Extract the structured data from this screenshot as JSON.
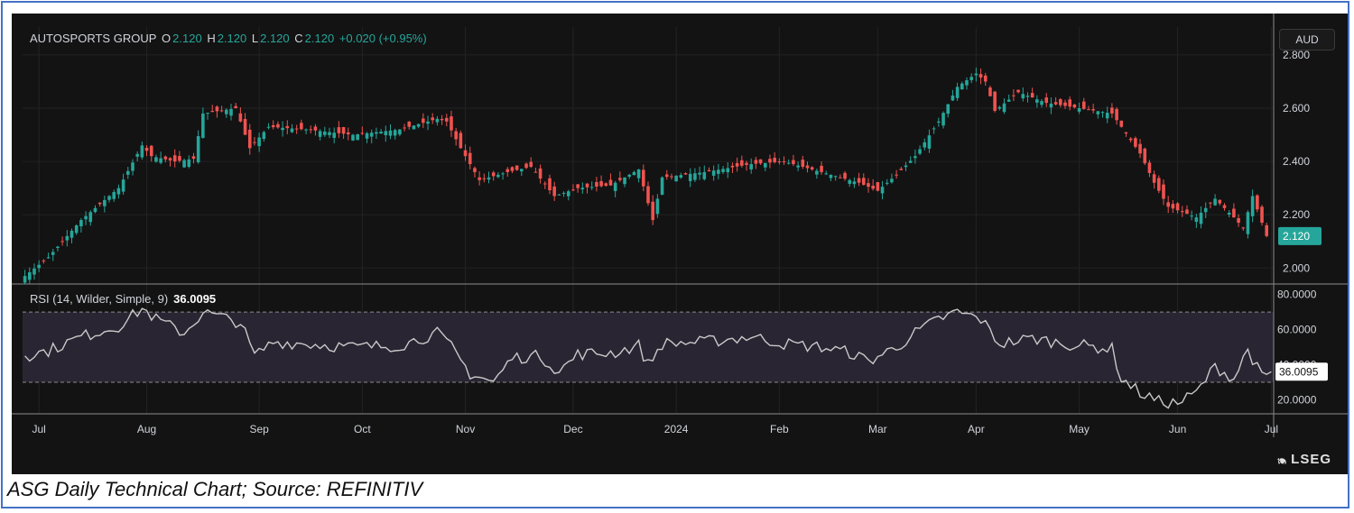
{
  "header": {
    "name": "AUTOSPORTS GROUP",
    "open_label": "O",
    "open": "2.120",
    "high_label": "H",
    "high": "2.120",
    "low_label": "L",
    "low": "2.120",
    "close_label": "C",
    "close": "2.120",
    "change": "+0.020 (+0.95%)"
  },
  "currency": "AUD",
  "rsi_header": {
    "label": "RSI (14, Wilder, Simple, 9)",
    "value": "36.0095"
  },
  "logo": {
    "text": "LSEG",
    "mark": "🙔"
  },
  "caption": "ASG Daily Technical Chart; Source: REFINITIV",
  "colors": {
    "up": "#26a69a",
    "down": "#ef5350",
    "rsi": "#c9c9c9",
    "rsi_band": "#2a2533",
    "background": "#131313",
    "grid": "#232323",
    "axis_text": "#d1d4dc"
  },
  "chart_data": {
    "type": "candlestick",
    "price_axis": {
      "ticks": [
        "2.000",
        "2.200",
        "2.400",
        "2.600",
        "2.800"
      ],
      "tick_values": [
        2.0,
        2.2,
        2.4,
        2.6,
        2.8
      ],
      "ylim": [
        1.94,
        2.82
      ],
      "last_price_label": "2.120",
      "last_price": 2.12
    },
    "rsi_axis": {
      "ticks": [
        "20.0000",
        "40.0000",
        "60.0000",
        "80.0000"
      ],
      "tick_values": [
        20,
        40,
        60,
        80
      ],
      "ylim": [
        12,
        85
      ],
      "bands": [
        30,
        70
      ],
      "last_value_label": "36.0095",
      "last_value": 36.0095
    },
    "x_axis": {
      "labels": [
        "Jul",
        "Aug",
        "Sep",
        "Oct",
        "Nov",
        "Dec",
        "2024",
        "Feb",
        "Mar",
        "Apr",
        "May",
        "Jun",
        "Jul"
      ],
      "label_index": [
        3,
        26,
        50,
        72,
        94,
        117,
        139,
        161,
        182,
        203,
        225,
        246,
        266
      ]
    },
    "close_anchors": [
      {
        "i": 0,
        "v": 1.97
      },
      {
        "i": 5,
        "v": 2.04
      },
      {
        "i": 12,
        "v": 2.18
      },
      {
        "i": 20,
        "v": 2.3
      },
      {
        "i": 25,
        "v": 2.46
      },
      {
        "i": 27,
        "v": 2.42
      },
      {
        "i": 32,
        "v": 2.4
      },
      {
        "i": 36,
        "v": 2.41
      },
      {
        "i": 38,
        "v": 2.58
      },
      {
        "i": 45,
        "v": 2.6
      },
      {
        "i": 48,
        "v": 2.45
      },
      {
        "i": 52,
        "v": 2.53
      },
      {
        "i": 60,
        "v": 2.52
      },
      {
        "i": 70,
        "v": 2.5
      },
      {
        "i": 80,
        "v": 2.52
      },
      {
        "i": 88,
        "v": 2.56
      },
      {
        "i": 90,
        "v": 2.55
      },
      {
        "i": 93,
        "v": 2.45
      },
      {
        "i": 97,
        "v": 2.33
      },
      {
        "i": 103,
        "v": 2.36
      },
      {
        "i": 108,
        "v": 2.38
      },
      {
        "i": 113,
        "v": 2.27
      },
      {
        "i": 118,
        "v": 2.3
      },
      {
        "i": 125,
        "v": 2.31
      },
      {
        "i": 131,
        "v": 2.37
      },
      {
        "i": 134,
        "v": 2.18
      },
      {
        "i": 136,
        "v": 2.34
      },
      {
        "i": 145,
        "v": 2.36
      },
      {
        "i": 155,
        "v": 2.39
      },
      {
        "i": 162,
        "v": 2.4
      },
      {
        "i": 170,
        "v": 2.36
      },
      {
        "i": 178,
        "v": 2.32
      },
      {
        "i": 182,
        "v": 2.29
      },
      {
        "i": 186,
        "v": 2.35
      },
      {
        "i": 190,
        "v": 2.42
      },
      {
        "i": 195,
        "v": 2.55
      },
      {
        "i": 199,
        "v": 2.68
      },
      {
        "i": 203,
        "v": 2.73
      },
      {
        "i": 205,
        "v": 2.7
      },
      {
        "i": 207,
        "v": 2.59
      },
      {
        "i": 212,
        "v": 2.66
      },
      {
        "i": 218,
        "v": 2.62
      },
      {
        "i": 225,
        "v": 2.6
      },
      {
        "i": 232,
        "v": 2.58
      },
      {
        "i": 238,
        "v": 2.43
      },
      {
        "i": 241,
        "v": 2.32
      },
      {
        "i": 244,
        "v": 2.23
      },
      {
        "i": 250,
        "v": 2.19
      },
      {
        "i": 254,
        "v": 2.26
      },
      {
        "i": 258,
        "v": 2.19
      },
      {
        "i": 260,
        "v": 2.15
      },
      {
        "i": 262,
        "v": 2.27
      },
      {
        "i": 264,
        "v": 2.17
      },
      {
        "i": 265,
        "v": 2.12
      }
    ],
    "rsi_anchors": [
      {
        "i": 0,
        "v": 45
      },
      {
        "i": 5,
        "v": 48
      },
      {
        "i": 12,
        "v": 56
      },
      {
        "i": 20,
        "v": 62
      },
      {
        "i": 25,
        "v": 72
      },
      {
        "i": 28,
        "v": 66
      },
      {
        "i": 34,
        "v": 58
      },
      {
        "i": 38,
        "v": 70
      },
      {
        "i": 46,
        "v": 64
      },
      {
        "i": 49,
        "v": 45
      },
      {
        "i": 53,
        "v": 53
      },
      {
        "i": 60,
        "v": 52
      },
      {
        "i": 70,
        "v": 50
      },
      {
        "i": 80,
        "v": 51
      },
      {
        "i": 88,
        "v": 58
      },
      {
        "i": 91,
        "v": 50
      },
      {
        "i": 95,
        "v": 35
      },
      {
        "i": 100,
        "v": 30
      },
      {
        "i": 104,
        "v": 44
      },
      {
        "i": 110,
        "v": 45
      },
      {
        "i": 114,
        "v": 36
      },
      {
        "i": 118,
        "v": 46
      },
      {
        "i": 126,
        "v": 47
      },
      {
        "i": 131,
        "v": 51
      },
      {
        "i": 133,
        "v": 40
      },
      {
        "i": 136,
        "v": 52
      },
      {
        "i": 145,
        "v": 53
      },
      {
        "i": 155,
        "v": 56
      },
      {
        "i": 162,
        "v": 52
      },
      {
        "i": 170,
        "v": 50
      },
      {
        "i": 176,
        "v": 47
      },
      {
        "i": 180,
        "v": 42
      },
      {
        "i": 186,
        "v": 50
      },
      {
        "i": 190,
        "v": 58
      },
      {
        "i": 195,
        "v": 66
      },
      {
        "i": 199,
        "v": 70
      },
      {
        "i": 204,
        "v": 66
      },
      {
        "i": 208,
        "v": 52
      },
      {
        "i": 215,
        "v": 55
      },
      {
        "i": 222,
        "v": 52
      },
      {
        "i": 232,
        "v": 49
      },
      {
        "i": 234,
        "v": 32
      },
      {
        "i": 238,
        "v": 24
      },
      {
        "i": 242,
        "v": 19
      },
      {
        "i": 246,
        "v": 18
      },
      {
        "i": 250,
        "v": 24
      },
      {
        "i": 254,
        "v": 39
      },
      {
        "i": 258,
        "v": 32
      },
      {
        "i": 261,
        "v": 49
      },
      {
        "i": 263,
        "v": 38
      },
      {
        "i": 264,
        "v": 33
      },
      {
        "i": 266,
        "v": 36
      }
    ]
  }
}
